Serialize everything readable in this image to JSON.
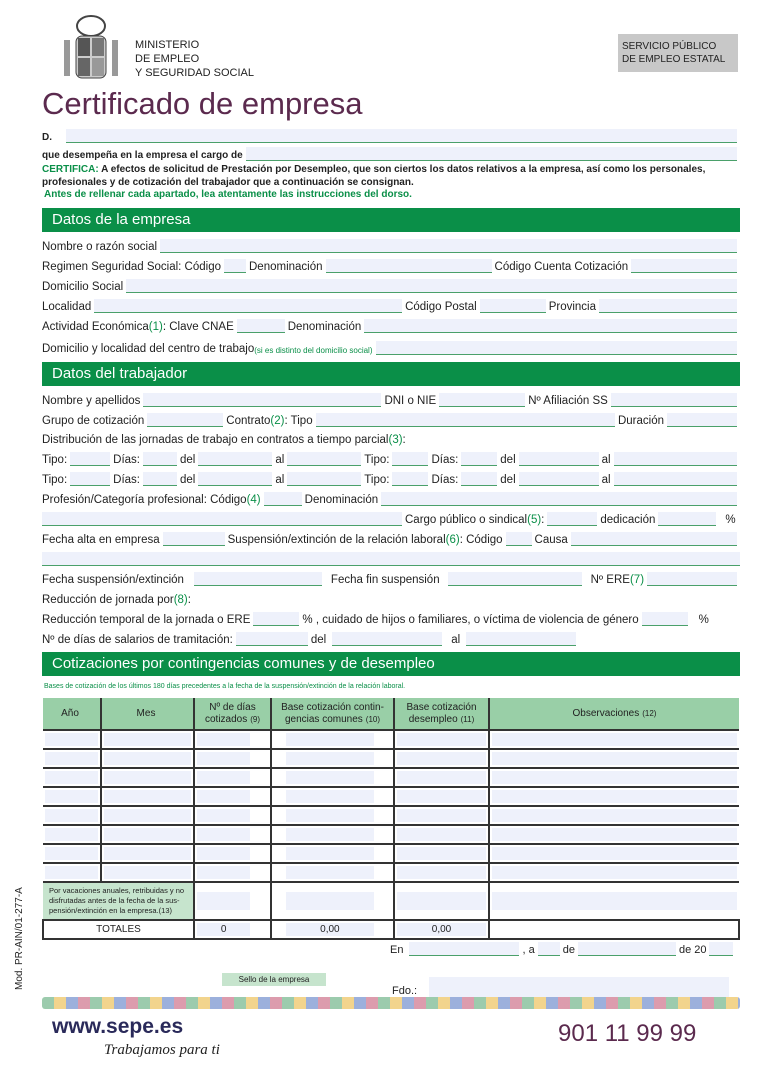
{
  "header": {
    "ministry": [
      "MINISTERIO",
      "DE EMPLEO",
      "Y SEGURIDAD SOCIAL"
    ],
    "sepe_box": [
      "SERVICIO PÚBLICO",
      "DE EMPLEO ESTATAL"
    ],
    "title": "Certificado de empresa"
  },
  "intro": {
    "d": "D.",
    "cargo": "que desempeña en la empresa el cargo de",
    "certifica_label": "CERTIFICA:",
    "certifica_text": " A efectos de solicitud de Prestación por Desempleo, que son ciertos los datos relativos a la empresa, así como los personales, profesionales y de cotización del trabajador que a continuación se consignan.",
    "note": "Antes de rellenar cada apartado, lea  atentamente las instrucciones del dorso."
  },
  "empresa": {
    "title": "Datos de la empresa",
    "nombre": "Nombre o razón social",
    "regimen": "Regimen Seguridad Social: Código",
    "denominacion": "Denominación",
    "ccc": "Código Cuenta Cotización",
    "domicilio": "Domicilio Social",
    "localidad": "Localidad",
    "cp": "Código Postal",
    "provincia": "Provincia",
    "actividad": "Actividad Económica ",
    "n1": "(1)",
    "cnae": ": Clave CNAE",
    "centro": "Domicilio y localidad del centro de trabajo ",
    "centro_note": "(si es distinto del domicilio social)"
  },
  "trabajador": {
    "title": "Datos del trabajador",
    "nombre": "Nombre y apellidos",
    "dni": "DNI o NIE",
    "afiliacion": "Nº  Afiliación SS",
    "grupo": "Grupo de cotización",
    "contrato": "Contrato ",
    "n2": "(2)",
    "tipo": ": Tipo",
    "duracion": "Duración",
    "distribucion": "Distribución de las jornadas de trabajo en contratos a tiempo parcial ",
    "n3": "(3)",
    "colon": ":",
    "tipo2": "Tipo:",
    "dias": "Días:",
    "del": "del",
    "al": "al",
    "profesion": "Profesión/Categoría profesional: Código ",
    "n4": "(4)",
    "denominacion": "Denominación",
    "cargo": "Cargo público o sindical",
    "n5": "(5)",
    "dedicacion": "dedicación",
    "pct": "%",
    "alta": "Fecha alta en empresa",
    "suspension": "Suspensión/extinción de la relación laboral ",
    "n6": "(6)",
    "codigo": " : Código",
    "causa": "Causa",
    "fecha_susp": "Fecha suspensión/extinción",
    "fecha_fin": "Fecha fin suspensión",
    "ere": "Nº ERE ",
    "n7": "(7)",
    "reduccion": "Reducción de jornada por ",
    "n8": "(8)",
    "reduccion_temp": "Reducción temporal de la jornada o ERE",
    "cuidado": "% ,  cuidado de hijos  o familiares, o  víctima de violencia de género",
    "salarios": "Nº de días de salarios de tramitación:"
  },
  "cotizaciones": {
    "title": "Cotizaciones por contingencias comunes y de desempleo",
    "note": "Bases de cotización de  los últimos 180 días precedentes a la fecha de la suspensión/extinción de la relación laboral.",
    "columns": [
      {
        "label": "Año",
        "ref": ""
      },
      {
        "label": "Mes",
        "ref": ""
      },
      {
        "label": "Nº de días cotizados",
        "ref": "(9)"
      },
      {
        "label": "Base cotización contin-gencias comunes",
        "ref": "(10)"
      },
      {
        "label": "Base cotización desempleo",
        "ref": "(11)"
      },
      {
        "label": "Observaciones",
        "ref": "(12)"
      }
    ],
    "vacaciones": "Por vacaciones anuales, retribuidas y no disfrutadas antes de la fecha de la sus-pensión/extinción en  la empresa.(13)",
    "totales": {
      "label": "TOTALES",
      "dias": "0",
      "comunes": "0,00",
      "desempleo": "0,00"
    }
  },
  "footer": {
    "en": "En",
    "a": ", a",
    "de": "de",
    "de20": "de 20",
    "sello": "Sello de la empresa",
    "fdo": "Fdo.:",
    "web": "www.sepe.es",
    "slogan": "Trabajamos para ti",
    "phone": "901 11 99 99",
    "model": "Mod. PR-AIN/01-277-A"
  },
  "colors": {
    "green": "#0a8f48",
    "title": "#5b2a4e",
    "field": "#eef1fb"
  }
}
